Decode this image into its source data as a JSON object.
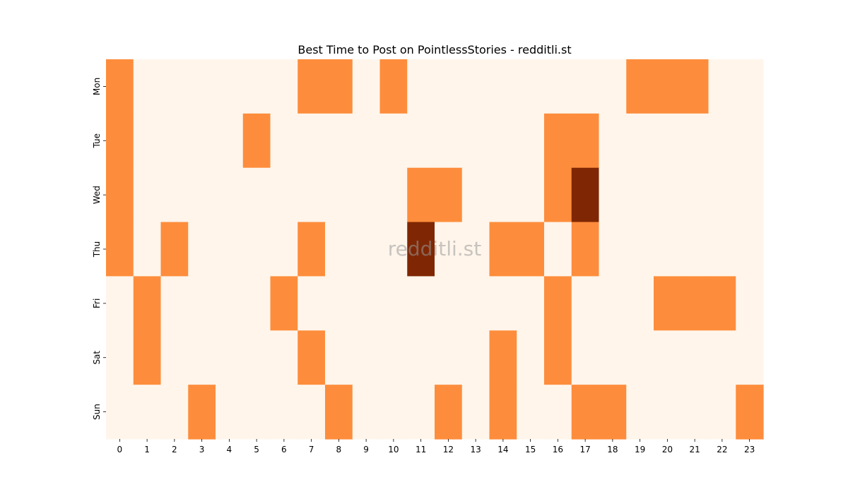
{
  "chart_data": {
    "type": "heatmap",
    "title": "Best Time to Post on PointlessStories - redditli.st",
    "xlabel": "",
    "ylabel": "",
    "x": [
      "0",
      "1",
      "2",
      "3",
      "4",
      "5",
      "6",
      "7",
      "8",
      "9",
      "10",
      "11",
      "12",
      "13",
      "14",
      "15",
      "16",
      "17",
      "18",
      "19",
      "20",
      "21",
      "22",
      "23"
    ],
    "y": [
      "Mon",
      "Tue",
      "Wed",
      "Thu",
      "Fri",
      "Sat",
      "Sun"
    ],
    "values": [
      [
        1,
        0,
        0,
        0,
        0,
        0,
        0,
        1,
        1,
        0,
        1,
        0,
        0,
        0,
        0,
        0,
        0,
        0,
        0,
        1,
        1,
        1,
        0,
        0
      ],
      [
        1,
        0,
        0,
        0,
        0,
        1,
        0,
        0,
        0,
        0,
        0,
        0,
        0,
        0,
        0,
        0,
        1,
        1,
        0,
        0,
        0,
        0,
        0,
        0
      ],
      [
        1,
        0,
        0,
        0,
        0,
        0,
        0,
        0,
        0,
        0,
        0,
        1,
        1,
        0,
        0,
        0,
        1,
        2,
        0,
        0,
        0,
        0,
        0,
        0
      ],
      [
        1,
        0,
        1,
        0,
        0,
        0,
        0,
        1,
        0,
        0,
        0,
        2,
        0,
        0,
        1,
        1,
        0,
        1,
        0,
        0,
        0,
        0,
        0,
        0
      ],
      [
        0,
        1,
        0,
        0,
        0,
        0,
        1,
        0,
        0,
        0,
        0,
        0,
        0,
        0,
        0,
        0,
        1,
        0,
        0,
        0,
        1,
        1,
        1,
        0
      ],
      [
        0,
        1,
        0,
        0,
        0,
        0,
        0,
        1,
        0,
        0,
        0,
        0,
        0,
        0,
        1,
        0,
        1,
        0,
        0,
        0,
        0,
        0,
        0,
        0
      ],
      [
        0,
        0,
        0,
        1,
        0,
        0,
        0,
        0,
        1,
        0,
        0,
        0,
        1,
        0,
        1,
        0,
        0,
        1,
        1,
        0,
        0,
        0,
        0,
        1
      ]
    ],
    "colorscale": {
      "0": "#fff5eb",
      "1": "#fd8d3c",
      "2": "#7f2704"
    },
    "grid": false,
    "colorbar": false,
    "watermark": "redditli.st"
  }
}
